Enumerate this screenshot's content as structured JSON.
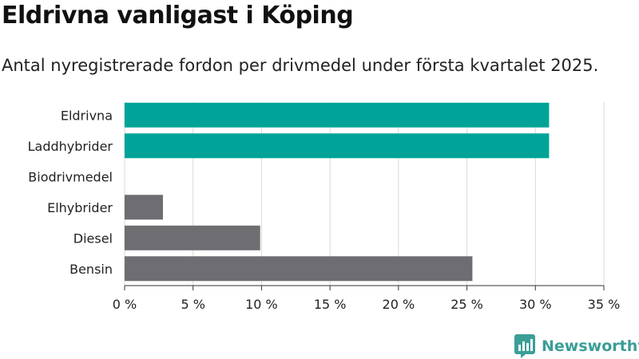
{
  "header": {
    "title": "Eldrivna vanligast i Köping",
    "subtitle": "Antal nyregistrerade fordon per drivmedel under första kvartalet 2025."
  },
  "brand": {
    "name": "Newsworthy",
    "icon": "newsworthy-logo-icon"
  },
  "colors": {
    "highlight": "#00a397",
    "default": "#6e6d72",
    "grid": "#d9d9d9",
    "text": "#222222"
  },
  "chart_data": {
    "type": "bar",
    "orientation": "horizontal",
    "categories": [
      "Eldrivna",
      "Laddhybrider",
      "Biodrivmedel",
      "Elhybrider",
      "Diesel",
      "Bensin"
    ],
    "values": [
      31.0,
      31.0,
      0,
      2.8,
      9.9,
      25.4
    ],
    "highlighted": [
      true,
      true,
      true,
      false,
      false,
      false
    ],
    "xlim": [
      0,
      35
    ],
    "xticks": [
      0,
      5,
      10,
      15,
      20,
      25,
      30,
      35
    ],
    "tick_suffix": " %",
    "grid": true
  }
}
